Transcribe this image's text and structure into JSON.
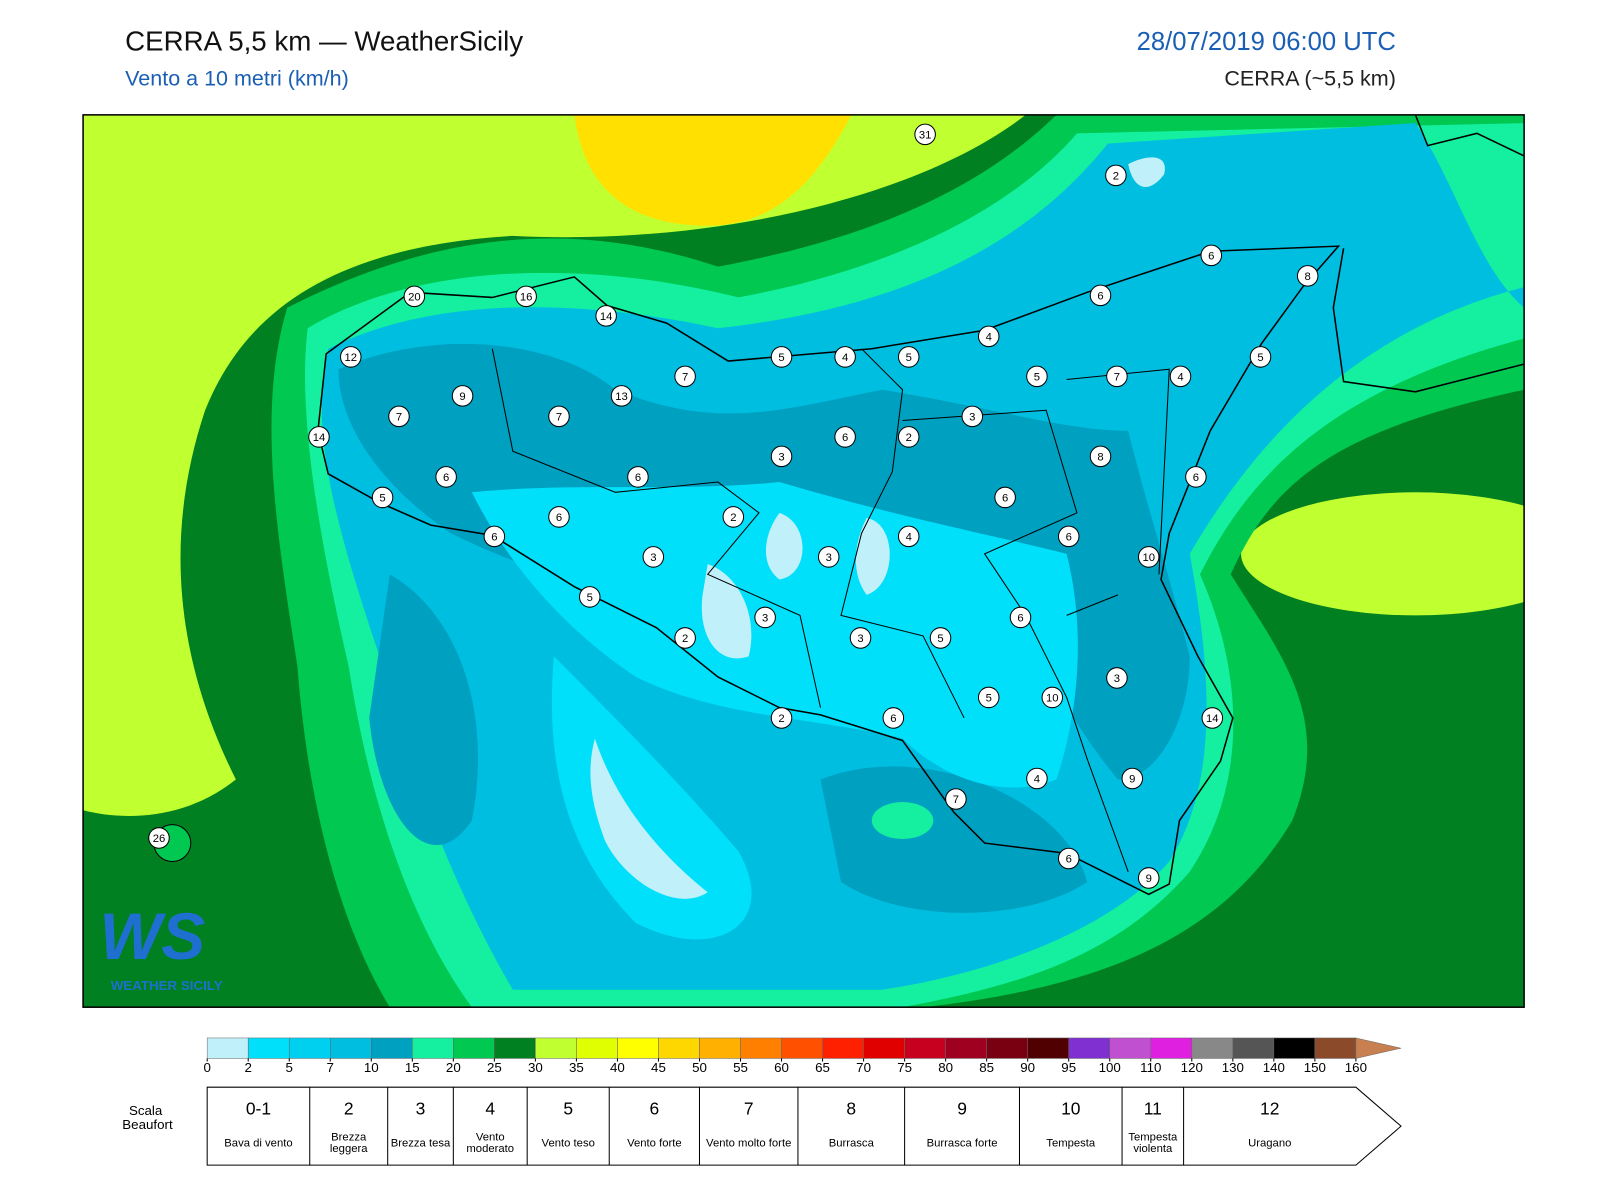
{
  "header": {
    "title": "CERRA 5,5 km — WeatherSicily",
    "subtitle": "Vento a 10 metri (km/h)",
    "date": "28/07/2019 06:00 UTC",
    "model": "CERRA (~5,5 km)"
  },
  "logo": {
    "mark": "WS",
    "name": "WEATHER SICILY"
  },
  "stations": [
    31,
    2,
    6,
    8,
    6,
    20,
    16,
    14,
    4,
    12,
    5,
    4,
    5,
    5,
    5,
    7,
    4,
    7,
    13,
    9,
    7,
    7,
    3,
    14,
    6,
    2,
    3,
    8,
    6,
    6,
    6,
    5,
    6,
    2,
    6,
    6,
    4,
    6,
    3,
    3,
    10,
    5,
    3,
    6,
    2,
    3,
    5,
    3,
    5,
    10,
    2,
    6,
    14,
    4,
    9,
    7,
    26,
    6,
    9
  ],
  "colorbar": {
    "ticks": [
      0,
      2,
      5,
      7,
      10,
      15,
      20,
      25,
      30,
      35,
      40,
      45,
      50,
      55,
      60,
      65,
      70,
      75,
      80,
      85,
      90,
      95,
      100,
      110,
      120,
      130,
      140,
      150,
      160
    ],
    "colors": [
      "#c0f0fa",
      "#00e0fa",
      "#00d0f0",
      "#00bee0",
      "#00a0c0",
      "#14f0a0",
      "#00c850",
      "#008020",
      "#c0ff30",
      "#e0ff00",
      "#ffff00",
      "#ffd700",
      "#ffb000",
      "#ff8000",
      "#ff5000",
      "#ff2000",
      "#e00000",
      "#c80020",
      "#a00020",
      "#780010",
      "#500000",
      "#8030d0",
      "#c050d0",
      "#e020e0",
      "#888888",
      "#555555",
      "#000000",
      "#8b4a2a",
      "#c88050"
    ]
  },
  "beaufort": {
    "label": "Scala Beaufort",
    "levels": [
      {
        "force": "0-1",
        "name": "Bava di vento"
      },
      {
        "force": "2",
        "name": "Brezza leggera"
      },
      {
        "force": "3",
        "name": "Brezza tesa"
      },
      {
        "force": "4",
        "name": "Vento moderato"
      },
      {
        "force": "5",
        "name": "Vento teso"
      },
      {
        "force": "6",
        "name": "Vento forte"
      },
      {
        "force": "7",
        "name": "Vento molto forte"
      },
      {
        "force": "8",
        "name": "Burrasca"
      },
      {
        "force": "9",
        "name": "Burrasca forte"
      },
      {
        "force": "10",
        "name": "Tempesta"
      },
      {
        "force": "11",
        "name": "Tempesta violenta"
      },
      {
        "force": "12",
        "name": "Uragano"
      }
    ]
  }
}
